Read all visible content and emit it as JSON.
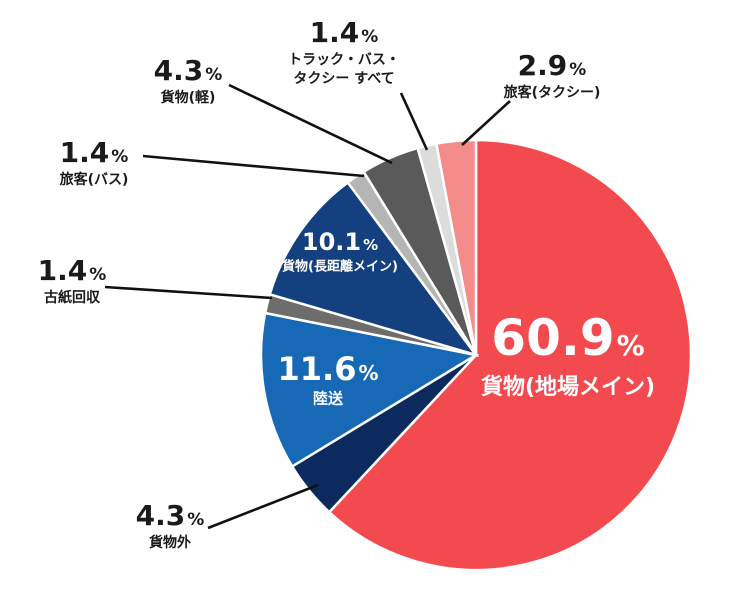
{
  "chart_data": {
    "type": "pie",
    "title": "",
    "start": "12 o'clock",
    "direction": "clockwise",
    "slices": [
      {
        "pct": "60.9",
        "unit": "%",
        "label": "貨物(地場メイン)",
        "value": 60.9,
        "color": "#f24a4f",
        "label_color": "#ffffff"
      },
      {
        "pct": "4.3",
        "unit": "%",
        "label": "貨物外",
        "value": 4.3,
        "color": "#0d2a5e",
        "label_color": "#1a1a1a"
      },
      {
        "pct": "11.6",
        "unit": "%",
        "label": "陸送",
        "value": 11.6,
        "color": "#1769b5",
        "label_color": "#ffffff"
      },
      {
        "pct": "1.4",
        "unit": "%",
        "label": "古紙回収",
        "value": 1.4,
        "color": "#6d6d6d",
        "label_color": "#1a1a1a"
      },
      {
        "pct": "10.1",
        "unit": "%",
        "label": "貨物(長距離メイン)",
        "value": 10.1,
        "color": "#14407f",
        "label_color": "#ffffff"
      },
      {
        "pct": "1.4",
        "unit": "%",
        "label": "旅客(バス)",
        "value": 1.4,
        "color": "#b5b5b5",
        "label_color": "#1a1a1a"
      },
      {
        "pct": "4.3",
        "unit": "%",
        "label": "貨物(軽)",
        "value": 4.3,
        "color": "#5a5a5a",
        "label_color": "#1a1a1a"
      },
      {
        "pct": "1.4",
        "unit": "%",
        "label": "トラック・バス・タクシー すべて",
        "label_lines": [
          "トラック・バス・",
          "タクシー すべて"
        ],
        "value": 1.4,
        "color": "#dcdcdc",
        "label_color": "#1a1a1a"
      },
      {
        "pct": "2.9",
        "unit": "%",
        "label": "旅客(タクシー)",
        "value": 2.9,
        "color": "#f48c8a",
        "label_color": "#1a1a1a"
      }
    ]
  }
}
